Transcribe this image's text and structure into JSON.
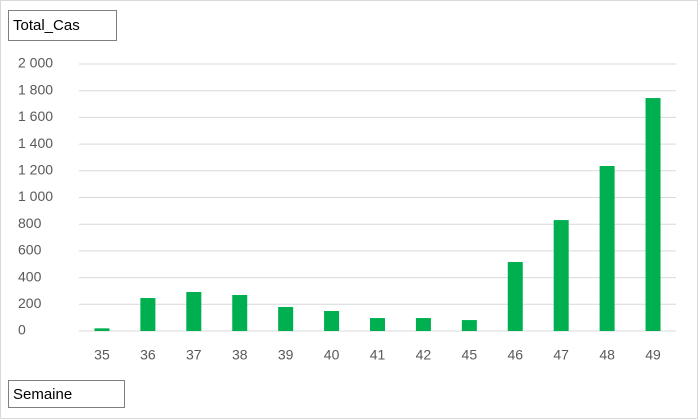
{
  "chart_data": {
    "type": "bar",
    "title": "Total_Cas",
    "x_label": "Semaine",
    "categories": [
      "35",
      "36",
      "37",
      "38",
      "39",
      "40",
      "41",
      "42",
      "45",
      "46",
      "47",
      "48",
      "49"
    ],
    "values": [
      20,
      247,
      292,
      270,
      180,
      150,
      97,
      97,
      82,
      517,
      831,
      1236,
      1745
    ],
    "color": "#00b050",
    "ylim": [
      0,
      2000
    ],
    "yticks": [
      0,
      200,
      400,
      600,
      800,
      {
        "value": 1000,
        "label": "1 000"
      },
      {
        "value": 1200,
        "label": "1 200"
      },
      {
        "value": 1400,
        "label": "1 400"
      },
      {
        "value": 1600,
        "label": "1 600"
      },
      {
        "value": 1800,
        "label": "1 800"
      },
      {
        "value": 2000,
        "label": "2 000"
      }
    ],
    "grid": true
  }
}
